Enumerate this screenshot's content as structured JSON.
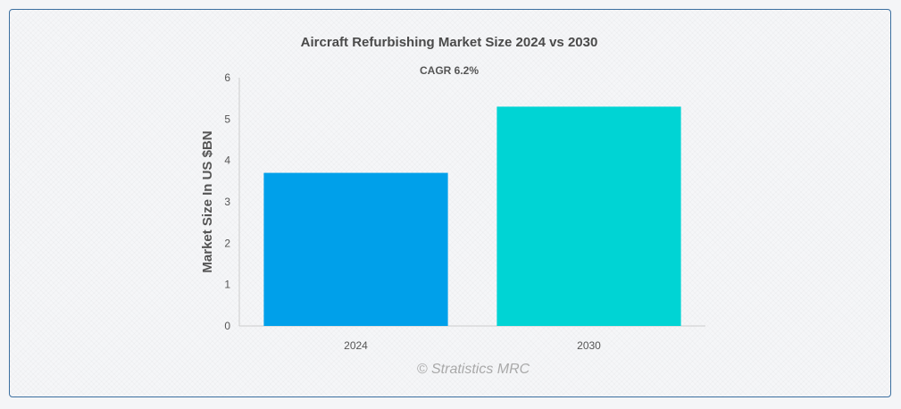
{
  "chart_data": {
    "type": "bar",
    "title": "Aircraft Refurbishing Market Size 2024 vs 2030",
    "subtitle": "CAGR 6.2%",
    "xlabel": "",
    "ylabel": "Market Size In US $BN",
    "categories": [
      "2024",
      "2030"
    ],
    "values": [
      3.7,
      5.3
    ],
    "colors": [
      "#00a0ea",
      "#00d4d4"
    ],
    "ylim": [
      0,
      6
    ],
    "yticks": [
      "0",
      "1",
      "2",
      "3",
      "4",
      "5",
      "6"
    ],
    "grid": false,
    "legend": "none"
  },
  "credit": "© Stratistics MRC"
}
